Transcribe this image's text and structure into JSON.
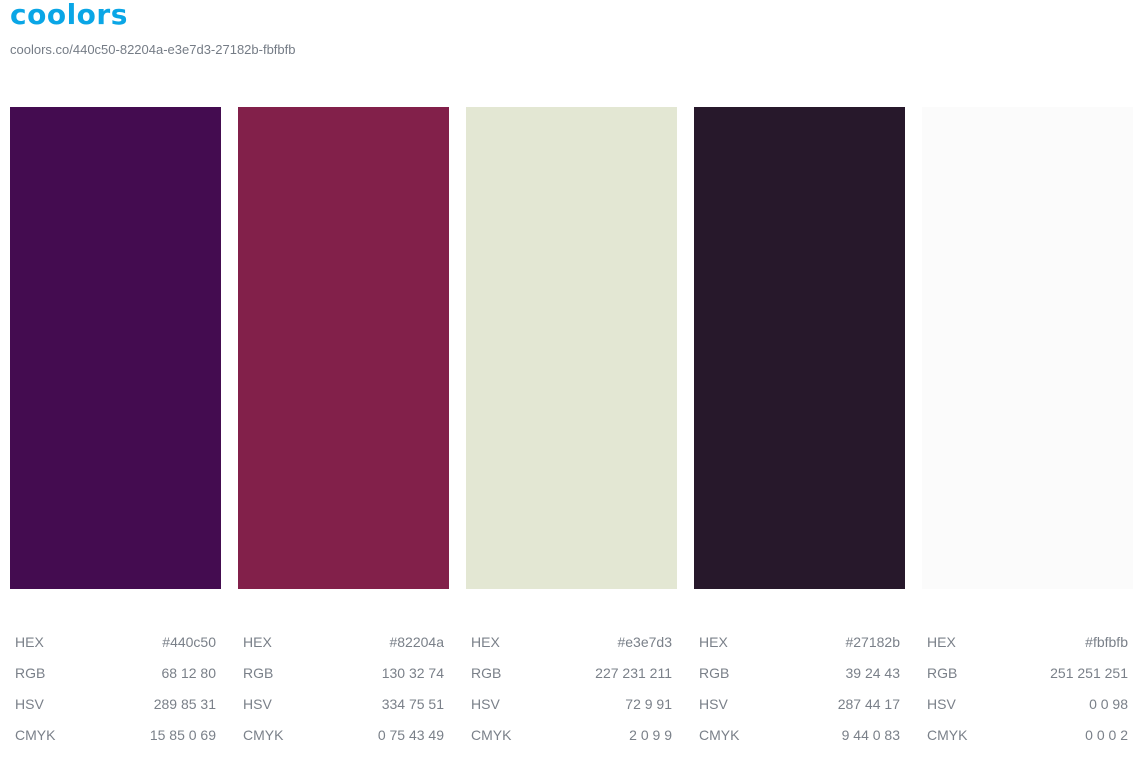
{
  "header": {
    "logo": "coolors",
    "url": "coolors.co/440c50-82204a-e3e7d3-27182b-fbfbfb"
  },
  "labels": {
    "hex": "HEX",
    "rgb": "RGB",
    "hsv": "HSV",
    "cmyk": "CMYK"
  },
  "colors": [
    {
      "color": "#440c50",
      "hex": "#440c50",
      "rgb": "68 12 80",
      "hsv": "289 85 31",
      "cmyk": "15 85 0 69"
    },
    {
      "color": "#82204a",
      "hex": "#82204a",
      "rgb": "130 32 74",
      "hsv": "334 75 51",
      "cmyk": "0 75 43 49"
    },
    {
      "color": "#e3e7d3",
      "hex": "#e3e7d3",
      "rgb": "227 231 211",
      "hsv": "72 9 91",
      "cmyk": "2 0 9 9"
    },
    {
      "color": "#27182b",
      "hex": "#27182b",
      "rgb": "39 24 43",
      "hsv": "287 44 17",
      "cmyk": "9 44 0 83"
    },
    {
      "color": "#fbfbfb",
      "hex": "#fbfbfb",
      "rgb": "251 251 251",
      "hsv": "0 0 98",
      "cmyk": "0 0 0 2"
    }
  ]
}
